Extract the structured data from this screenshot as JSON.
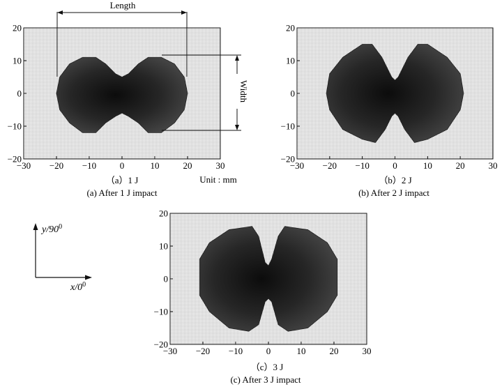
{
  "panels": [
    {
      "id": "a",
      "caption_cn": "（a）1 J",
      "caption_en": "(a) After 1 J impact",
      "x_ticks": [
        "−30",
        "−20",
        "−10",
        "0",
        "10",
        "20",
        "30"
      ],
      "y_ticks": [
        "20",
        "10",
        "0",
        "−10",
        "−20"
      ],
      "xlim": [
        -30,
        30
      ],
      "ylim": [
        -20,
        20
      ],
      "damage_outline": {
        "upper": [
          [
            -20,
            0
          ],
          [
            -19,
            5
          ],
          [
            -16,
            9
          ],
          [
            -12,
            11
          ],
          [
            -8,
            11
          ],
          [
            -5,
            9
          ],
          [
            -2,
            6
          ],
          [
            0,
            5
          ],
          [
            2,
            6
          ],
          [
            5,
            9
          ],
          [
            8,
            11
          ],
          [
            12,
            11
          ],
          [
            16,
            9
          ],
          [
            19,
            5
          ],
          [
            20,
            0
          ]
        ],
        "lower": [
          [
            -20,
            0
          ],
          [
            -19,
            -5
          ],
          [
            -16,
            -9
          ],
          [
            -12,
            -12
          ],
          [
            -8,
            -12
          ],
          [
            -5,
            -9
          ],
          [
            -2,
            -7
          ],
          [
            0,
            -6
          ],
          [
            2,
            -7
          ],
          [
            5,
            -9
          ],
          [
            8,
            -12
          ],
          [
            12,
            -12
          ],
          [
            16,
            -9
          ],
          [
            19,
            -5
          ],
          [
            20,
            0
          ]
        ]
      }
    },
    {
      "id": "b",
      "caption_cn": "（b）2 J",
      "caption_en": "(b) After 2 J impact",
      "x_ticks": [
        "−30",
        "−20",
        "−10",
        "0",
        "10",
        "20",
        "30"
      ],
      "y_ticks": [
        "20",
        "10",
        "0",
        "−10",
        "−20"
      ],
      "xlim": [
        -30,
        30
      ],
      "ylim": [
        -20,
        20
      ],
      "damage_outline": {
        "upper": [
          [
            -21,
            0
          ],
          [
            -20,
            6
          ],
          [
            -16,
            11
          ],
          [
            -10,
            15
          ],
          [
            -7,
            15
          ],
          [
            -4,
            11
          ],
          [
            -1,
            5
          ],
          [
            0,
            4
          ],
          [
            1,
            5
          ],
          [
            4,
            11
          ],
          [
            7,
            15
          ],
          [
            10,
            15
          ],
          [
            16,
            11
          ],
          [
            20,
            6
          ],
          [
            21,
            0
          ]
        ],
        "lower": [
          [
            -21,
            0
          ],
          [
            -20,
            -5
          ],
          [
            -16,
            -11
          ],
          [
            -10,
            -14
          ],
          [
            -6,
            -15
          ],
          [
            -3,
            -11
          ],
          [
            -1,
            -7
          ],
          [
            0,
            -6
          ],
          [
            1,
            -7
          ],
          [
            3,
            -11
          ],
          [
            6,
            -15
          ],
          [
            10,
            -14
          ],
          [
            16,
            -11
          ],
          [
            20,
            -5
          ],
          [
            21,
            0
          ]
        ]
      }
    },
    {
      "id": "c",
      "caption_cn": "（c）3 J",
      "caption_en": "(c) After 3 J impact",
      "x_ticks": [
        "−30",
        "−20",
        "−10",
        "0",
        "10",
        "20",
        "30"
      ],
      "y_ticks": [
        "20",
        "10",
        "0",
        "−10",
        "−20"
      ],
      "xlim": [
        -30,
        30
      ],
      "ylim": [
        -20,
        20
      ],
      "damage_outline": {
        "upper": [
          [
            -21,
            0
          ],
          [
            -21,
            6
          ],
          [
            -18,
            11
          ],
          [
            -12,
            15
          ],
          [
            -5,
            16
          ],
          [
            -3,
            13
          ],
          [
            -1,
            5
          ],
          [
            0,
            4
          ],
          [
            1,
            6
          ],
          [
            3,
            13
          ],
          [
            5,
            16
          ],
          [
            12,
            15
          ],
          [
            18,
            11
          ],
          [
            21,
            6
          ],
          [
            21,
            0
          ]
        ],
        "lower": [
          [
            -21,
            0
          ],
          [
            -21,
            -5
          ],
          [
            -18,
            -10
          ],
          [
            -12,
            -15
          ],
          [
            -6,
            -16
          ],
          [
            -3,
            -14
          ],
          [
            -1,
            -7
          ],
          [
            0,
            -6
          ],
          [
            1,
            -7
          ],
          [
            3,
            -14
          ],
          [
            6,
            -16
          ],
          [
            12,
            -15
          ],
          [
            18,
            -10
          ],
          [
            21,
            -5
          ],
          [
            21,
            0
          ]
        ]
      }
    }
  ],
  "annotations": {
    "length_label": "Length",
    "width_label": "Width",
    "unit_label": "Unit : mm",
    "axis_y_label": "y/90",
    "axis_x_label": "x/0",
    "angle_superscript": "0"
  }
}
